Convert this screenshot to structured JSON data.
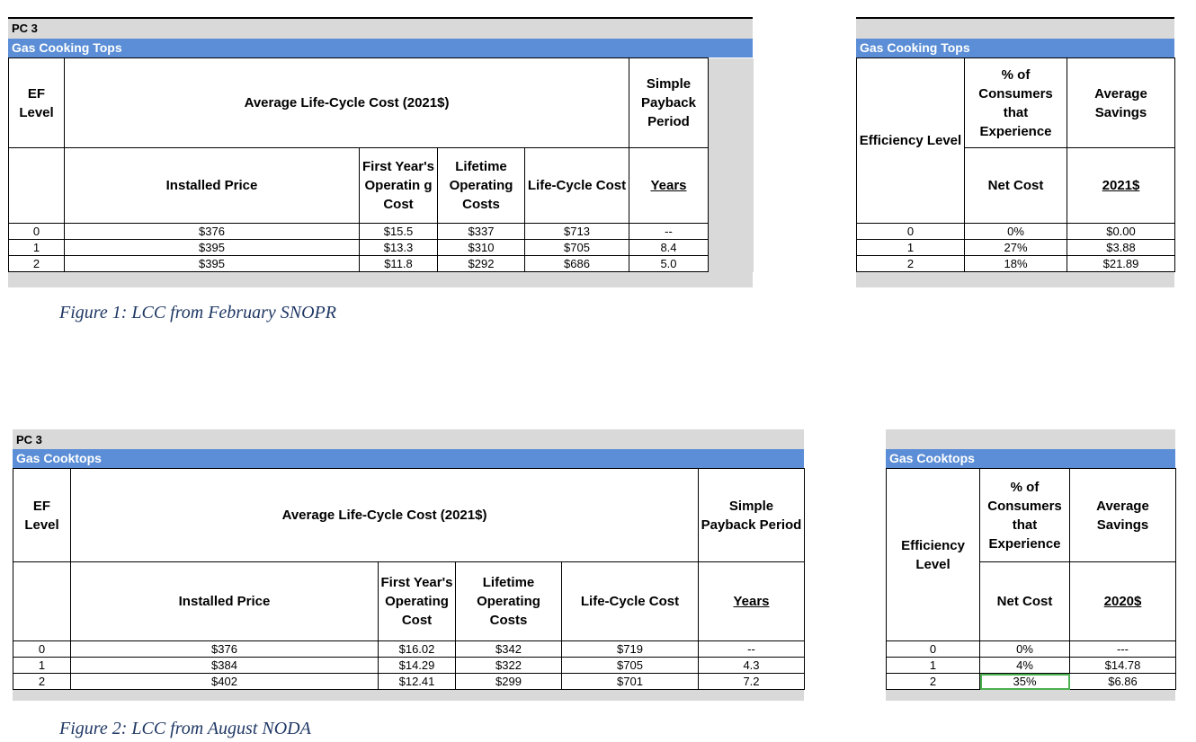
{
  "figure1": {
    "left": {
      "pc": "PC 3",
      "band": "Gas Cooking Tops",
      "head": {
        "ef_level": "EF Level",
        "avg_lcc": "Average Life-Cycle Cost (2021$)",
        "simple_payback": "Simple Payback Period",
        "installed_price": "Installed Price",
        "first_year_op": "First Year's Operatin g Cost",
        "lifetime_op": "Lifetime Operating Costs",
        "lcc": "Life-Cycle Cost",
        "years": "Years"
      },
      "rows": [
        {
          "level": "0",
          "installed": "$376",
          "first": "$15.5",
          "lifetime": "$337",
          "lcc": "$713",
          "payback": "--"
        },
        {
          "level": "1",
          "installed": "$395",
          "first": "$13.3",
          "lifetime": "$310",
          "lcc": "$705",
          "payback": "8.4"
        },
        {
          "level": "2",
          "installed": "$395",
          "first": "$11.8",
          "lifetime": "$292",
          "lcc": "$686",
          "payback": "5.0"
        }
      ]
    },
    "right": {
      "band": "Gas Cooking Tops",
      "head": {
        "efficiency_level": "Efficiency Level",
        "pct_consumers": "% of Consumers that Experience",
        "avg_savings": "Average Savings",
        "net_cost": "Net Cost",
        "unit": "2021$"
      },
      "rows": [
        {
          "level": "0",
          "pct": "0%",
          "savings": "$0.00"
        },
        {
          "level": "1",
          "pct": "27%",
          "savings": "$3.88"
        },
        {
          "level": "2",
          "pct": "18%",
          "savings": "$21.89"
        }
      ]
    },
    "caption": "Figure 1: LCC from February SNOPR"
  },
  "figure2": {
    "left": {
      "pc": "PC 3",
      "band": "Gas Cooktops",
      "head": {
        "ef_level": "EF Level",
        "avg_lcc": "Average Life-Cycle Cost (2021$)",
        "simple_payback": "Simple Payback Period",
        "installed_price": "Installed Price",
        "first_year_op": "First Year's Operating Cost",
        "lifetime_op": "Lifetime Operating Costs",
        "lcc": "Life-Cycle Cost",
        "years": "Years"
      },
      "rows": [
        {
          "level": "0",
          "installed": "$376",
          "first": "$16.02",
          "lifetime": "$342",
          "lcc": "$719",
          "payback": "--"
        },
        {
          "level": "1",
          "installed": "$384",
          "first": "$14.29",
          "lifetime": "$322",
          "lcc": "$705",
          "payback": "4.3"
        },
        {
          "level": "2",
          "installed": "$402",
          "first": "$12.41",
          "lifetime": "$299",
          "lcc": "$701",
          "payback": "7.2"
        }
      ]
    },
    "right": {
      "band": "Gas Cooktops",
      "head": {
        "efficiency_level": "Efficiency Level",
        "pct_consumers": "% of Consumers that Experience",
        "avg_savings": "Average Savings",
        "net_cost": "Net Cost",
        "unit": "2020$"
      },
      "rows": [
        {
          "level": "0",
          "pct": "0%",
          "savings": "---"
        },
        {
          "level": "1",
          "pct": "4%",
          "savings": "$14.78"
        },
        {
          "level": "2",
          "pct": "35%",
          "savings": "$6.86"
        }
      ]
    },
    "caption": "Figure 2: LCC from August NODA"
  }
}
